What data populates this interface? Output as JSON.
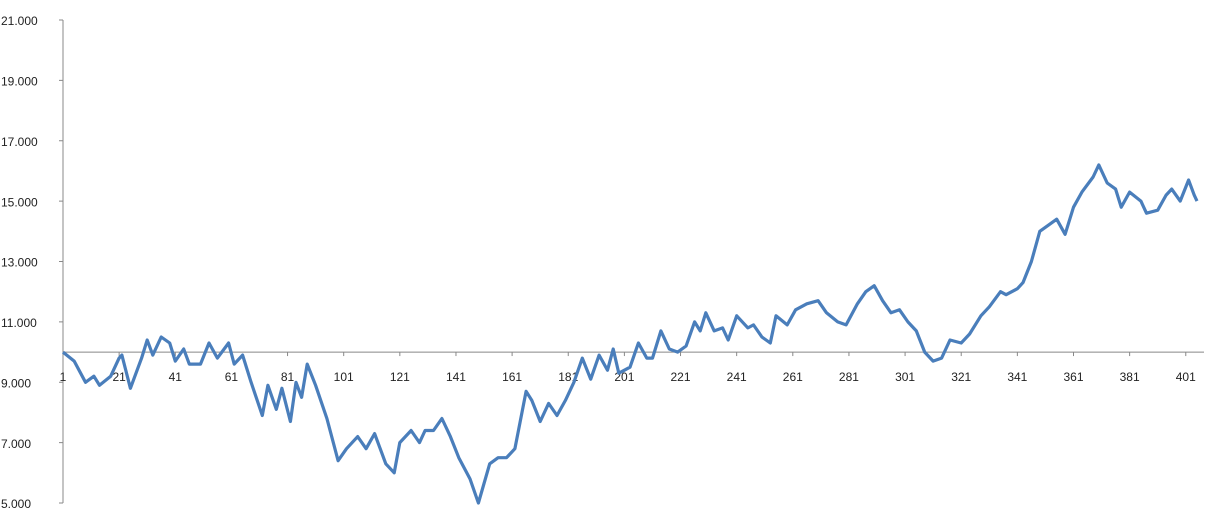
{
  "chart_data": {
    "type": "line",
    "x": [
      1,
      5,
      9,
      12,
      14,
      18,
      21,
      22,
      25,
      29,
      31,
      33,
      36,
      39,
      41,
      44,
      46,
      50,
      53,
      56,
      60,
      62,
      65,
      68,
      72,
      74,
      77,
      79,
      82,
      84,
      86,
      88,
      91,
      95,
      99,
      102,
      106,
      109,
      112,
      116,
      119,
      121,
      125,
      128,
      130,
      133,
      136,
      139,
      142,
      146,
      149,
      153,
      156,
      159,
      162,
      166,
      168,
      171,
      174,
      177,
      180,
      183,
      186,
      189,
      192,
      195,
      197,
      199,
      203,
      206,
      209,
      211,
      214,
      217,
      220,
      223,
      226,
      228,
      230,
      233,
      236,
      238,
      241,
      245,
      247,
      250,
      253,
      255,
      259,
      262,
      266,
      270,
      273,
      277,
      280,
      284,
      287,
      290,
      293,
      296,
      299,
      302,
      305,
      308,
      311,
      314,
      317,
      321,
      324,
      328,
      331,
      335,
      337,
      341,
      343,
      346,
      349,
      352,
      355,
      358,
      361,
      364,
      368,
      370,
      373,
      376,
      378,
      381,
      385,
      387,
      391,
      394,
      396,
      399,
      402,
      404,
      405
    ],
    "series": [
      {
        "color": "#4a7ebb",
        "values": [
          10.0,
          9.7,
          9.0,
          9.2,
          8.9,
          9.2,
          9.8,
          9.9,
          8.8,
          9.8,
          10.4,
          9.9,
          10.5,
          10.3,
          9.7,
          10.1,
          9.6,
          9.6,
          10.3,
          9.8,
          10.3,
          9.6,
          9.9,
          9.0,
          7.9,
          8.9,
          8.1,
          8.8,
          7.7,
          9.0,
          8.5,
          9.6,
          8.9,
          7.8,
          6.4,
          6.8,
          7.2,
          6.8,
          7.3,
          6.3,
          6.0,
          7.0,
          7.4,
          7.0,
          7.4,
          7.4,
          7.8,
          7.2,
          6.5,
          5.8,
          5.0,
          6.3,
          6.5,
          6.5,
          6.8,
          8.7,
          8.4,
          7.7,
          8.3,
          7.9,
          8.4,
          9.0,
          9.8,
          9.1,
          9.9,
          9.4,
          10.1,
          9.3,
          9.5,
          10.3,
          9.8,
          9.8,
          10.7,
          10.1,
          10.0,
          10.2,
          11.0,
          10.7,
          11.3,
          10.7,
          10.8,
          10.4,
          11.2,
          10.8,
          10.9,
          10.5,
          10.3,
          11.2,
          10.9,
          11.4,
          11.6,
          11.7,
          11.3,
          11.0,
          10.9,
          11.6,
          12.0,
          12.2,
          11.7,
          11.3,
          11.4,
          11.0,
          10.7,
          10.0,
          9.7,
          9.8,
          10.4,
          10.3,
          10.6,
          11.2,
          11.5,
          12.0,
          11.9,
          12.1,
          12.3,
          13.0,
          14.0,
          14.2,
          14.4,
          13.9,
          14.8,
          15.3,
          15.8,
          16.2,
          15.6,
          15.4,
          14.8,
          15.3,
          15.0,
          14.6,
          14.7,
          15.2,
          15.4,
          15.0,
          15.7,
          15.2,
          15.0
        ]
      }
    ],
    "xlim": [
      1,
      405
    ],
    "xticks": [
      1,
      21,
      41,
      61,
      81,
      101,
      121,
      141,
      161,
      181,
      201,
      221,
      241,
      261,
      281,
      301,
      321,
      341,
      361,
      381,
      401
    ],
    "ylim": [
      5,
      21
    ],
    "yticks": [
      {
        "value": 5,
        "label": "5.000"
      },
      {
        "value": 7,
        "label": "7.000"
      },
      {
        "value": 9,
        "label": "9.000"
      },
      {
        "value": 11,
        "label": "11.000"
      },
      {
        "value": 13,
        "label": "13.000"
      },
      {
        "value": 15,
        "label": "15.000"
      },
      {
        "value": 17,
        "label": "17.000"
      },
      {
        "value": 19,
        "label": "19.000"
      },
      {
        "value": 21,
        "label": "21.000"
      }
    ],
    "x_axis_crosses": 10
  }
}
